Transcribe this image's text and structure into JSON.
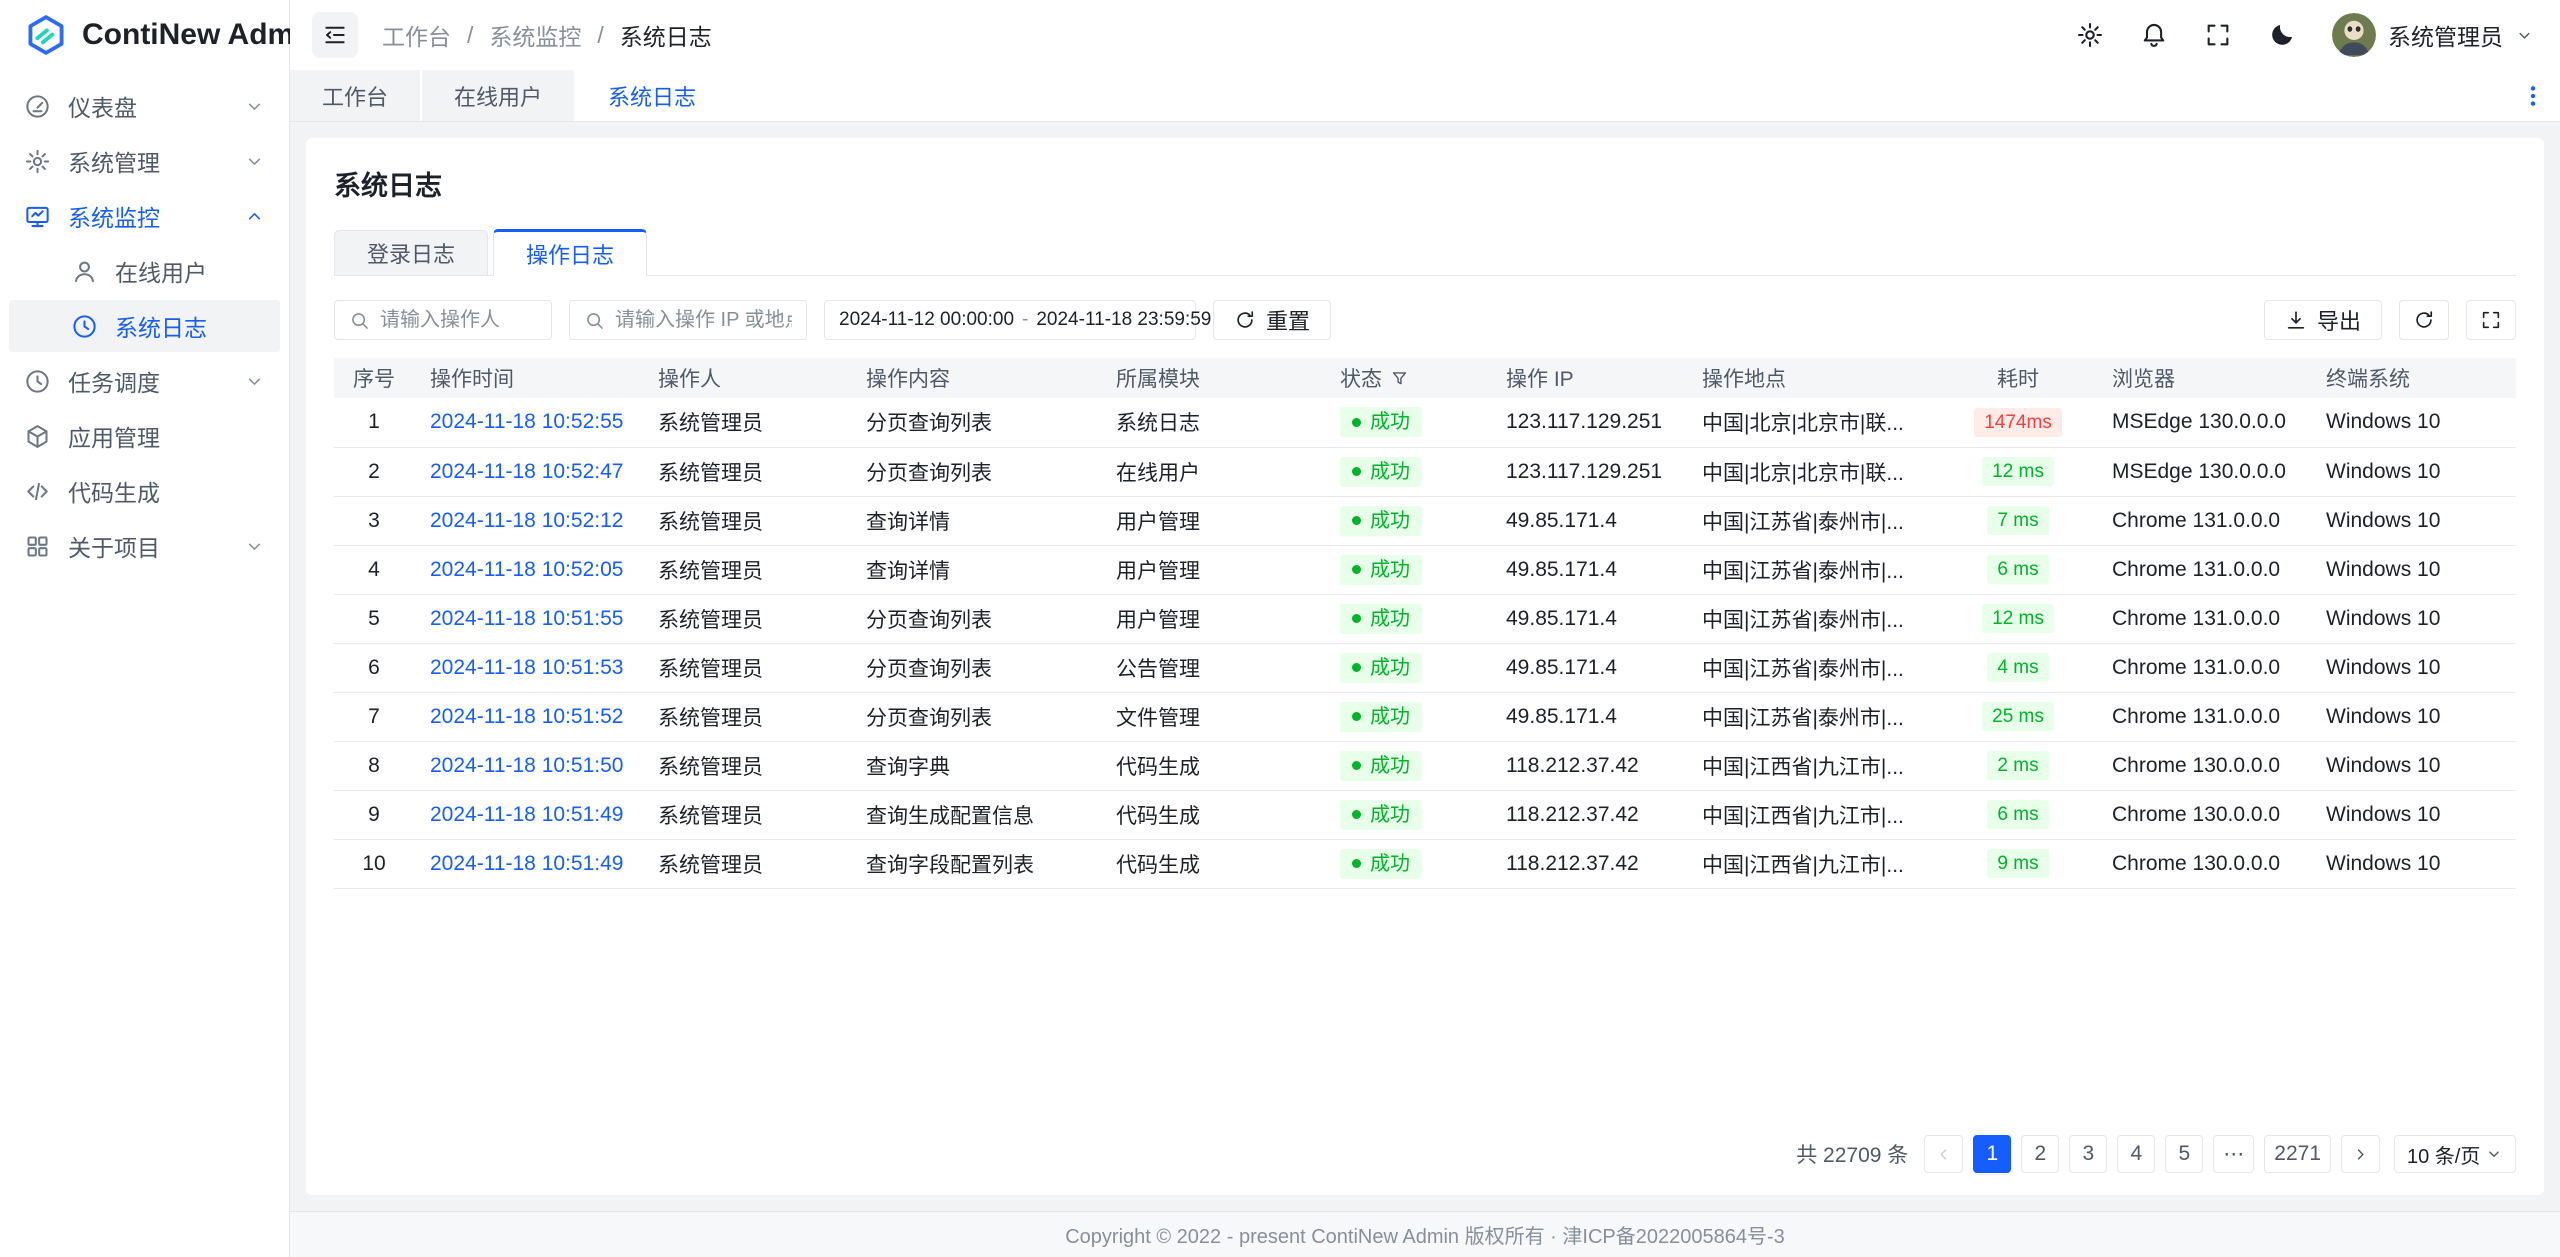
{
  "app": {
    "name": "ContiNew Admin"
  },
  "colors": {
    "primary": "#165dff",
    "success_text": "#00b42a",
    "success_bg": "#e8ffea",
    "error_text": "#f53f3f",
    "error_bg": "#ffece8",
    "sidebar_selected_bg": "#f2f3f5",
    "main_bg": "#f2f3f5",
    "border": "#e5e6eb"
  },
  "sidebar": {
    "items": [
      {
        "id": "dashboard",
        "icon": "dashboard-icon",
        "label": "仪表盘",
        "chevron": "down"
      },
      {
        "id": "system-management",
        "icon": "gear-icon",
        "label": "系统管理",
        "chevron": "down"
      },
      {
        "id": "system-monitor",
        "icon": "monitor-icon",
        "label": "系统监控",
        "chevron": "up",
        "active": true
      },
      {
        "id": "online-users",
        "icon": "user-icon",
        "label": "在线用户",
        "child": true
      },
      {
        "id": "system-logs",
        "icon": "clock-icon",
        "label": "系统日志",
        "child": true,
        "selected": true
      },
      {
        "id": "task-schedule",
        "icon": "schedule-icon",
        "label": "任务调度",
        "chevron": "down"
      },
      {
        "id": "app-management",
        "icon": "cube-icon",
        "label": "应用管理"
      },
      {
        "id": "code-generation",
        "icon": "code-icon",
        "label": "代码生成"
      },
      {
        "id": "about-project",
        "icon": "grid-icon",
        "label": "关于项目",
        "chevron": "down"
      }
    ]
  },
  "header": {
    "breadcrumb": [
      "工作台",
      "系统监控",
      "系统日志"
    ],
    "breadcrumb_separator": "/",
    "username": "系统管理员"
  },
  "tabbar": {
    "tabs": [
      {
        "id": "workbench",
        "label": "工作台"
      },
      {
        "id": "online-users",
        "label": "在线用户"
      },
      {
        "id": "system-logs",
        "label": "系统日志"
      }
    ],
    "active_index": 2
  },
  "page": {
    "title": "系统日志"
  },
  "card_tabs": {
    "tabs": [
      {
        "id": "login-logs",
        "label": "登录日志"
      },
      {
        "id": "operation-logs",
        "label": "操作日志"
      }
    ],
    "active_index": 1
  },
  "filters": {
    "operator_placeholder": "请输入操作人",
    "ip_placeholder": "请输入操作 IP 或地点",
    "date_start": "2024-11-12 00:00:00",
    "date_separator": "-",
    "date_end": "2024-11-18 23:59:59",
    "reset_label": "重置"
  },
  "toolbar": {
    "export_label": "导出"
  },
  "table": {
    "columns": [
      "序号",
      "操作时间",
      "操作人",
      "操作内容",
      "所属模块",
      "状态",
      "操作 IP",
      "操作地点",
      "耗时",
      "浏览器",
      "终端系统"
    ],
    "rows": [
      {
        "no": "1",
        "time": "2024-11-18 10:52:55",
        "operator": "系统管理员",
        "content": "分页查询列表",
        "module": "系统日志",
        "status": "成功",
        "ip": "123.117.129.251",
        "location": "中国|北京|北京市|联...",
        "duration": "1474ms",
        "duration_level": "error",
        "browser": "MSEdge 130.0.0.0",
        "os": "Windows 10"
      },
      {
        "no": "2",
        "time": "2024-11-18 10:52:47",
        "operator": "系统管理员",
        "content": "分页查询列表",
        "module": "在线用户",
        "status": "成功",
        "ip": "123.117.129.251",
        "location": "中国|北京|北京市|联...",
        "duration": "12 ms",
        "duration_level": "normal",
        "browser": "MSEdge 130.0.0.0",
        "os": "Windows 10"
      },
      {
        "no": "3",
        "time": "2024-11-18 10:52:12",
        "operator": "系统管理员",
        "content": "查询详情",
        "module": "用户管理",
        "status": "成功",
        "ip": "49.85.171.4",
        "location": "中国|江苏省|泰州市|...",
        "duration": "7 ms",
        "duration_level": "normal",
        "browser": "Chrome 131.0.0.0",
        "os": "Windows 10"
      },
      {
        "no": "4",
        "time": "2024-11-18 10:52:05",
        "operator": "系统管理员",
        "content": "查询详情",
        "module": "用户管理",
        "status": "成功",
        "ip": "49.85.171.4",
        "location": "中国|江苏省|泰州市|...",
        "duration": "6 ms",
        "duration_level": "normal",
        "browser": "Chrome 131.0.0.0",
        "os": "Windows 10"
      },
      {
        "no": "5",
        "time": "2024-11-18 10:51:55",
        "operator": "系统管理员",
        "content": "分页查询列表",
        "module": "用户管理",
        "status": "成功",
        "ip": "49.85.171.4",
        "location": "中国|江苏省|泰州市|...",
        "duration": "12 ms",
        "duration_level": "normal",
        "browser": "Chrome 131.0.0.0",
        "os": "Windows 10"
      },
      {
        "no": "6",
        "time": "2024-11-18 10:51:53",
        "operator": "系统管理员",
        "content": "分页查询列表",
        "module": "公告管理",
        "status": "成功",
        "ip": "49.85.171.4",
        "location": "中国|江苏省|泰州市|...",
        "duration": "4 ms",
        "duration_level": "normal",
        "browser": "Chrome 131.0.0.0",
        "os": "Windows 10"
      },
      {
        "no": "7",
        "time": "2024-11-18 10:51:52",
        "operator": "系统管理员",
        "content": "分页查询列表",
        "module": "文件管理",
        "status": "成功",
        "ip": "49.85.171.4",
        "location": "中国|江苏省|泰州市|...",
        "duration": "25 ms",
        "duration_level": "normal",
        "browser": "Chrome 131.0.0.0",
        "os": "Windows 10"
      },
      {
        "no": "8",
        "time": "2024-11-18 10:51:50",
        "operator": "系统管理员",
        "content": "查询字典",
        "module": "代码生成",
        "status": "成功",
        "ip": "118.212.37.42",
        "location": "中国|江西省|九江市|...",
        "duration": "2 ms",
        "duration_level": "normal",
        "browser": "Chrome 130.0.0.0",
        "os": "Windows 10"
      },
      {
        "no": "9",
        "time": "2024-11-18 10:51:49",
        "operator": "系统管理员",
        "content": "查询生成配置信息",
        "module": "代码生成",
        "status": "成功",
        "ip": "118.212.37.42",
        "location": "中国|江西省|九江市|...",
        "duration": "6 ms",
        "duration_level": "normal",
        "browser": "Chrome 130.0.0.0",
        "os": "Windows 10"
      },
      {
        "no": "10",
        "time": "2024-11-18 10:51:49",
        "operator": "系统管理员",
        "content": "查询字段配置列表",
        "module": "代码生成",
        "status": "成功",
        "ip": "118.212.37.42",
        "location": "中国|江西省|九江市|...",
        "duration": "9 ms",
        "duration_level": "normal",
        "browser": "Chrome 130.0.0.0",
        "os": "Windows 10"
      }
    ]
  },
  "pagination": {
    "total_label": "共 22709 条",
    "pages": [
      "1",
      "2",
      "3",
      "4",
      "5",
      "⋯",
      "2271"
    ],
    "active_page": "1",
    "page_size_label": "10 条/页"
  },
  "footer": {
    "copyright": "Copyright © 2022 - present ContiNew Admin 版权所有 · 津ICP备2022005864号-3"
  }
}
